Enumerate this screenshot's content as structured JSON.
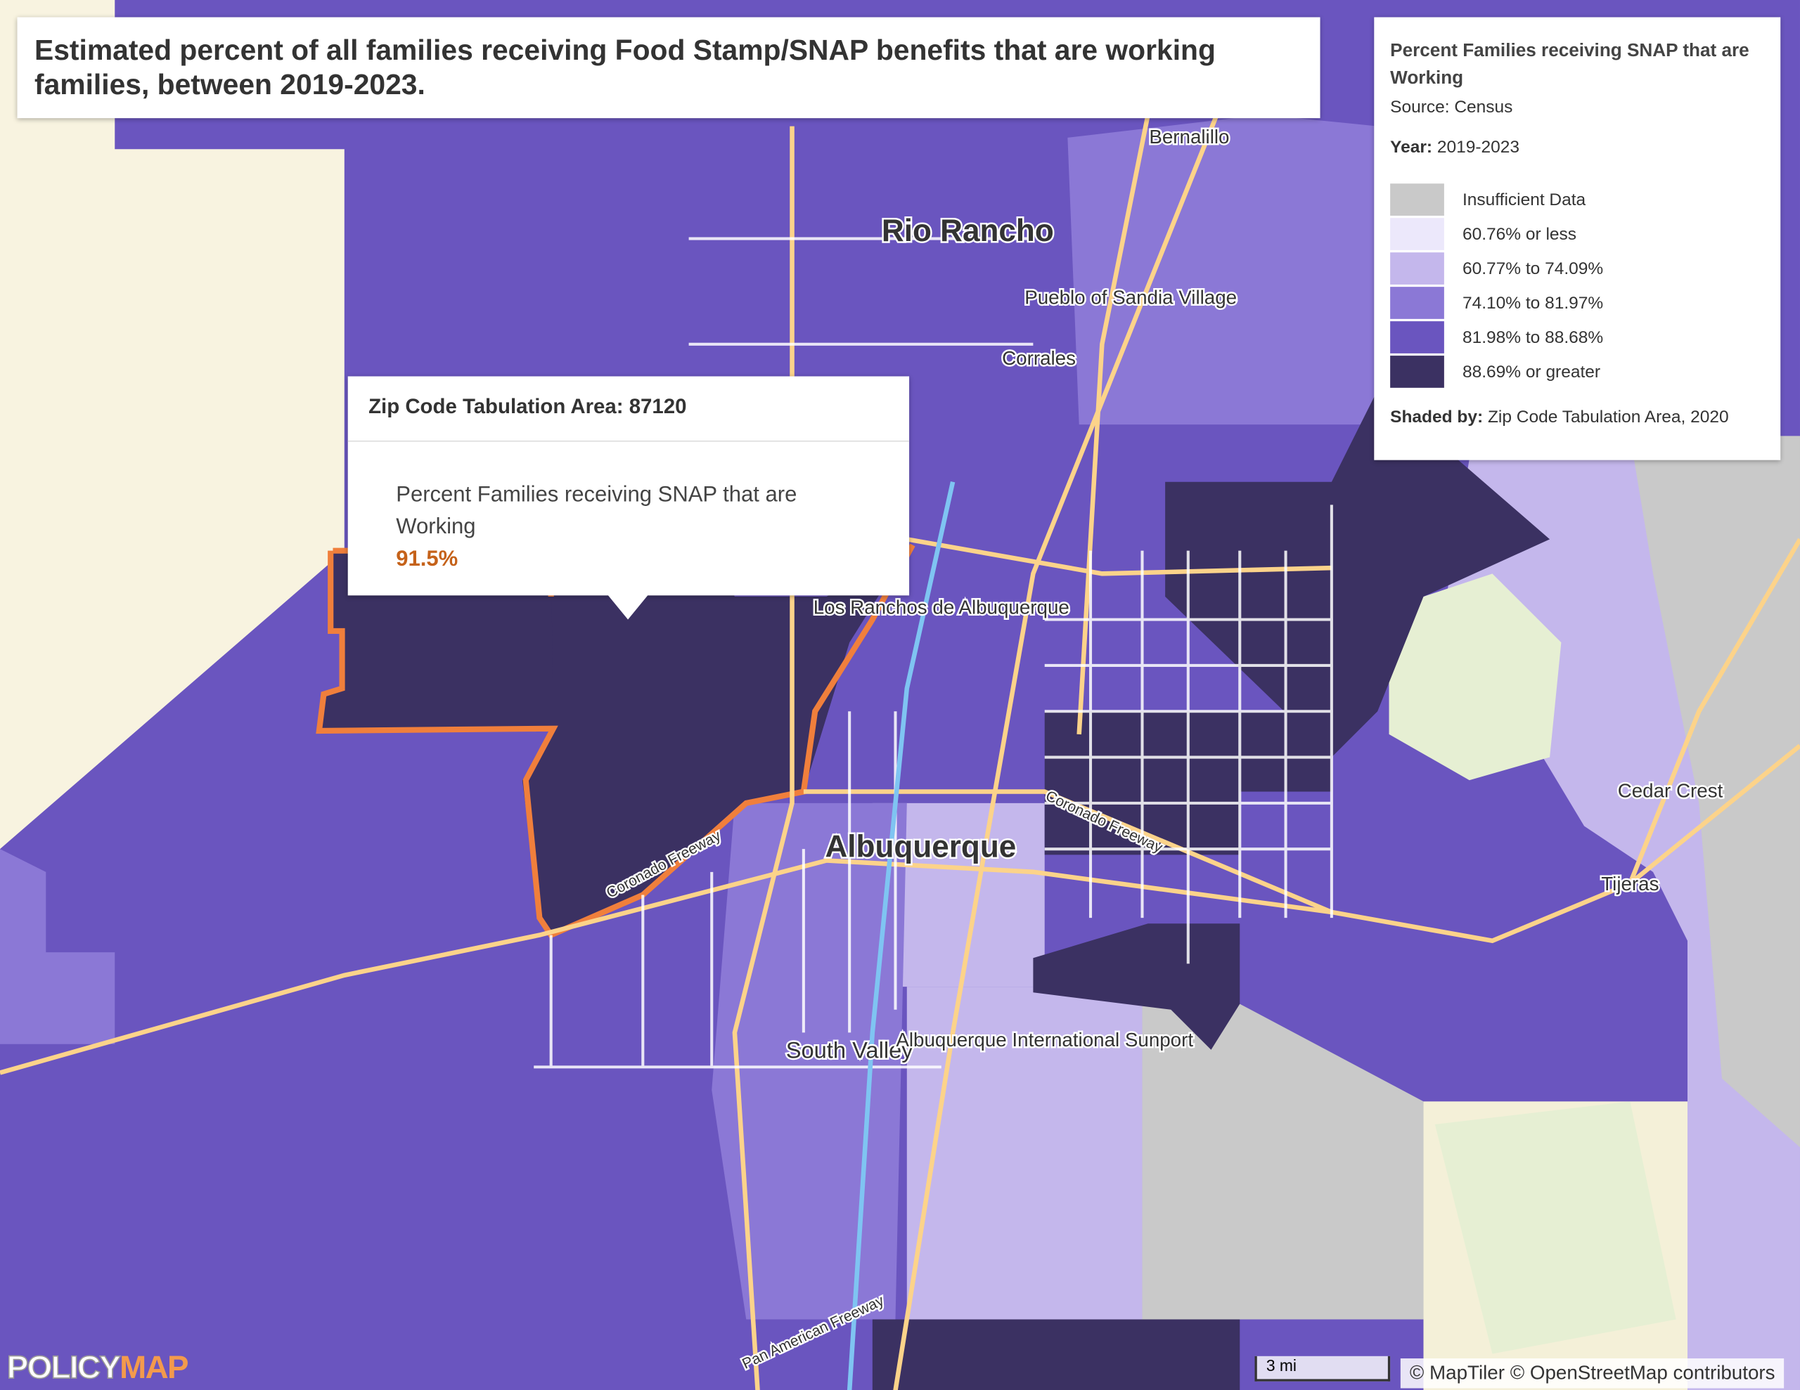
{
  "header": {
    "title": "Estimated percent of all families receiving Food Stamp/SNAP benefits that are working families, between 2019-2023."
  },
  "legend": {
    "title": "Percent Families receiving SNAP that are Working",
    "source": "Source: Census",
    "year_label": "Year:",
    "year": "2019-2023",
    "items": [
      {
        "label": "Insufficient Data",
        "color": "#c9c9c9"
      },
      {
        "label": "60.76% or less",
        "color": "#ece8fb"
      },
      {
        "label": "60.77% to 74.09%",
        "color": "#c4b7ec"
      },
      {
        "label": "74.10% to 81.97%",
        "color": "#8b78d6"
      },
      {
        "label": "81.98% to 88.68%",
        "color": "#6a55bf"
      },
      {
        "label": "88.69% or greater",
        "color": "#3b3162"
      }
    ],
    "shaded_label": "Shaded by:",
    "shaded": "Zip Code Tabulation Area, 2020"
  },
  "tooltip": {
    "title": "Zip Code Tabulation Area: 87120",
    "metric": "Percent Families receiving SNAP that are Working",
    "value": "91.5%"
  },
  "places": [
    "Bernalillo",
    "Rio Rancho",
    "Pueblo of Sandia Village",
    "Corrales",
    "Los Ranchos de Albuquerque",
    "Albuquerque",
    "South Valley",
    "Albuquerque International Sunport",
    "Cedar Crest",
    "Tijeras",
    "Coronado Freeway",
    "Coronado Freeway",
    "Pan American Freeway"
  ],
  "scale": "3 mi",
  "attribution": "© MapTiler © OpenStreetMap contributors",
  "brand": {
    "part1": "POLICY",
    "part2": "MAP"
  }
}
